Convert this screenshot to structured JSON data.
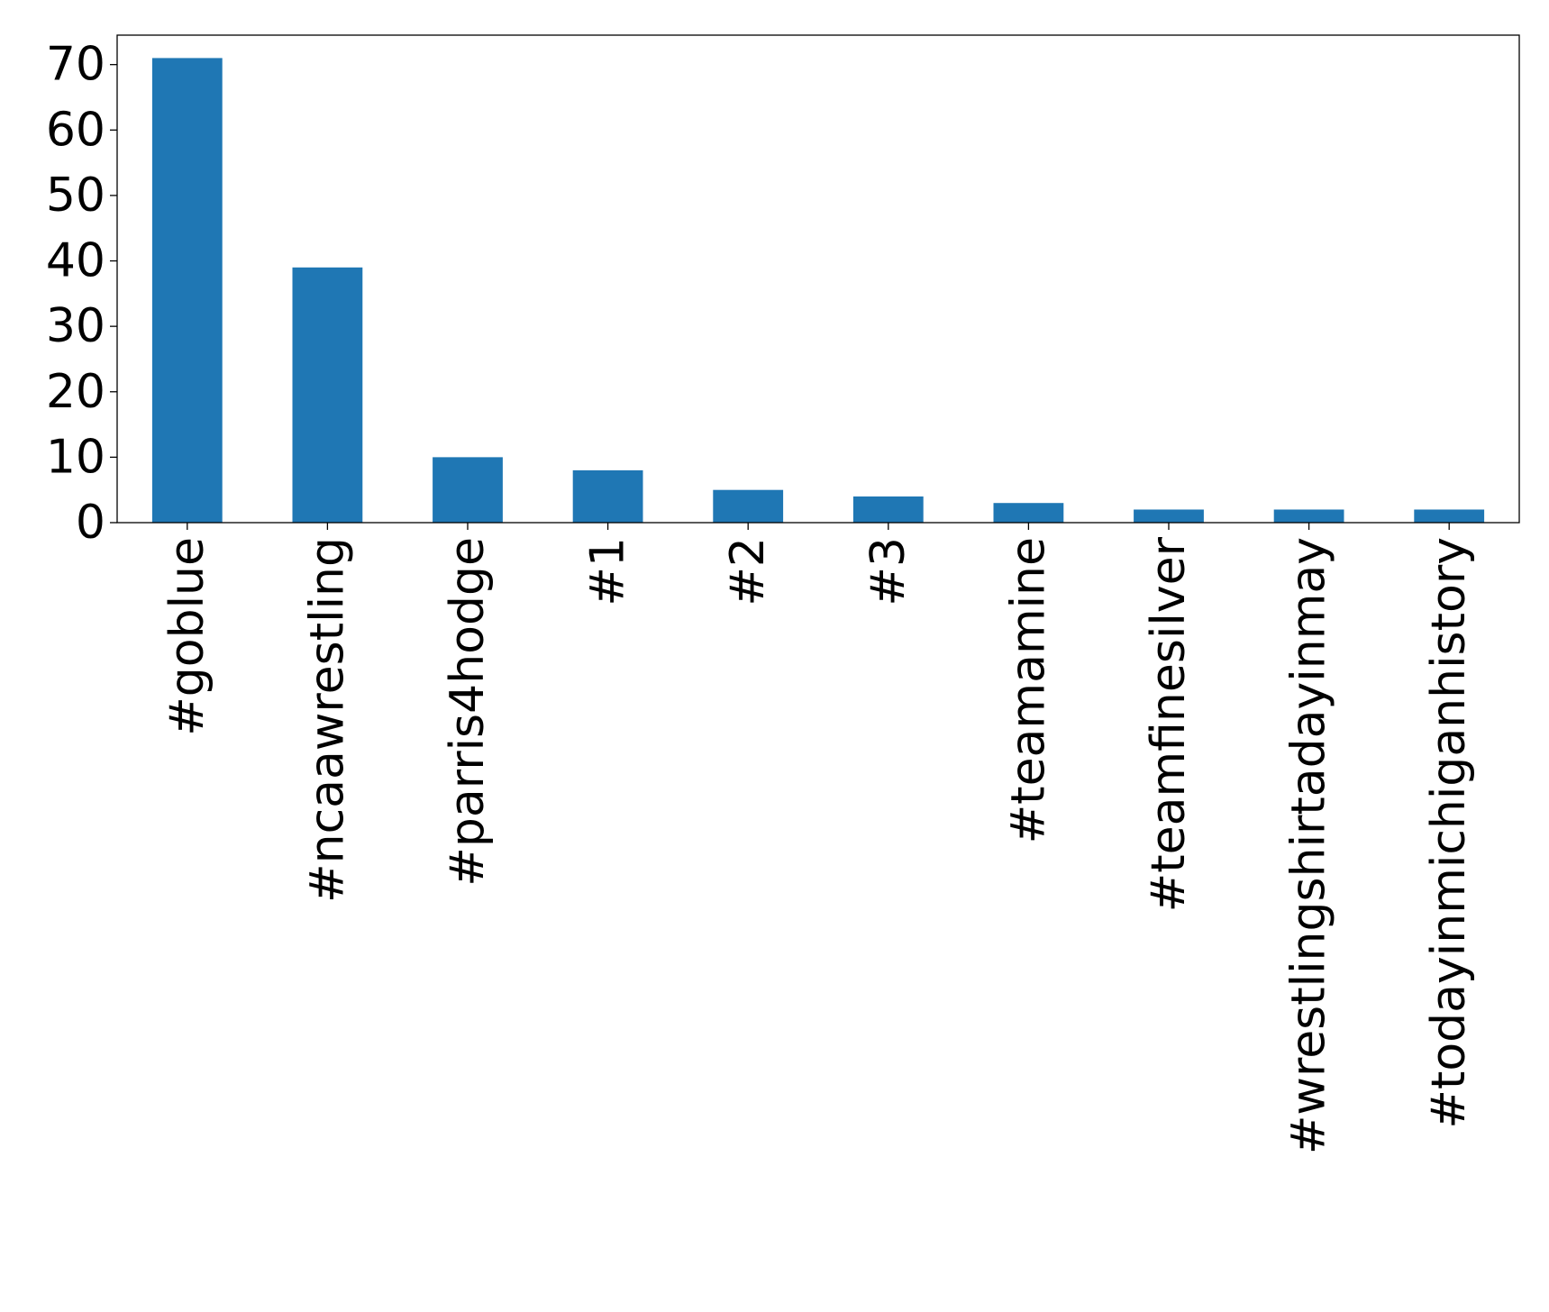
{
  "chart_data": {
    "type": "bar",
    "categories": [
      "#goblue",
      "#ncaawrestling",
      "#parris4hodge",
      "#1",
      "#2",
      "#3",
      "#teamamine",
      "#teamfinesilver",
      "#wrestlingshirtadayinmay",
      "#todayinmichiganhistory"
    ],
    "values": [
      71,
      39,
      10,
      8,
      5,
      4,
      3,
      2,
      2,
      2
    ],
    "y_ticks": [
      "0",
      "10",
      "20",
      "30",
      "40",
      "50",
      "60",
      "70"
    ],
    "ylim": [
      0,
      74.5
    ],
    "title": "",
    "xlabel": "",
    "ylabel": "",
    "grid": false,
    "bar_color": "#1f77b4"
  }
}
